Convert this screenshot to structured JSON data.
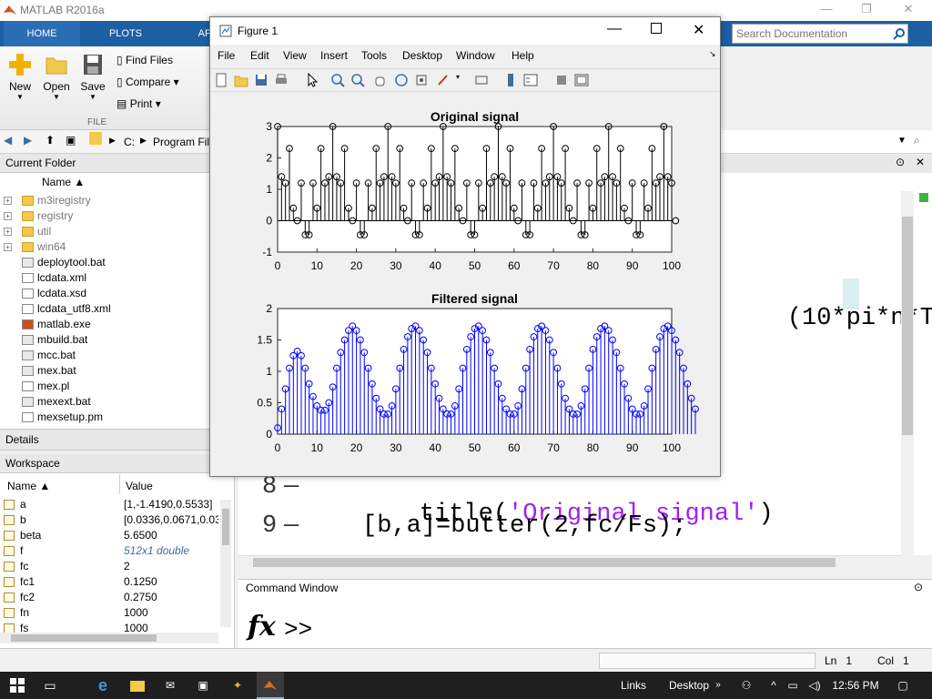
{
  "window": {
    "title": "MATLAB R2016a",
    "min": "—",
    "max": "❐",
    "close": "✕"
  },
  "ribbon": {
    "tabs": [
      "HOME",
      "PLOTS",
      "AP"
    ],
    "search_placeholder": "Search Documentation",
    "new_label": "New",
    "open_label": "Open",
    "save_label": "Save",
    "find_files_label": "Find Files",
    "compare_label": "Compare",
    "print_label": "Print",
    "group_label": "FILE"
  },
  "address": {
    "path": [
      "C:",
      "Program Fil"
    ]
  },
  "current_folder": {
    "title": "Current Folder",
    "col_name": "Name ▲",
    "items": [
      {
        "name": "m3iregistry",
        "type": "folder"
      },
      {
        "name": "registry",
        "type": "folder"
      },
      {
        "name": "util",
        "type": "folder"
      },
      {
        "name": "win64",
        "type": "folder"
      },
      {
        "name": "deploytool.bat",
        "type": "bat"
      },
      {
        "name": "lcdata.xml",
        "type": "file"
      },
      {
        "name": "lcdata.xsd",
        "type": "file"
      },
      {
        "name": "lcdata_utf8.xml",
        "type": "file"
      },
      {
        "name": "matlab.exe",
        "type": "exe"
      },
      {
        "name": "mbuild.bat",
        "type": "bat"
      },
      {
        "name": "mcc.bat",
        "type": "bat"
      },
      {
        "name": "mex.bat",
        "type": "bat"
      },
      {
        "name": "mex.pl",
        "type": "file"
      },
      {
        "name": "mexext.bat",
        "type": "bat"
      },
      {
        "name": "mexsetup.pm",
        "type": "file"
      }
    ]
  },
  "details": {
    "title": "Details"
  },
  "workspace": {
    "title": "Workspace",
    "col_name": "Name ▲",
    "col_value": "Value",
    "vars": [
      {
        "name": "a",
        "value": "[1,-1.4190,0.5533]"
      },
      {
        "name": "b",
        "value": "[0.0336,0.0671,0.033"
      },
      {
        "name": "beta",
        "value": "5.6500"
      },
      {
        "name": "f",
        "value": "512x1 double"
      },
      {
        "name": "fc",
        "value": "2"
      },
      {
        "name": "fc1",
        "value": "0.1250"
      },
      {
        "name": "fc2",
        "value": "0.2750"
      },
      {
        "name": "fn",
        "value": "1000"
      },
      {
        "name": "fs",
        "value": "1000"
      }
    ]
  },
  "editor": {
    "fragment": "(10*pi*n*T",
    "lines": [
      {
        "num": "8",
        "prefix": "title(",
        "string": "'Original signal'",
        "suffix": ")"
      },
      {
        "num": "9",
        "prefix": "[b,a]=butter(2,fc/Fs);",
        "string": "",
        "suffix": ""
      }
    ]
  },
  "command_window": {
    "title": "Command Window",
    "prompt": ">>",
    "fx": "fx"
  },
  "statusbar": {
    "ln_label": "Ln",
    "ln": "1",
    "col_label": "Col",
    "col": "1"
  },
  "figure": {
    "title": "Figure 1",
    "menu": [
      "File",
      "Edit",
      "View",
      "Insert",
      "Tools",
      "Desktop",
      "Window",
      "Help"
    ]
  },
  "taskbar": {
    "links": "Links",
    "desktop": "Desktop",
    "time": "12:56 PM"
  },
  "chart_data": [
    {
      "type": "stem",
      "title": "Original signal",
      "color": "#000000",
      "xlim": [
        0,
        100
      ],
      "ylim": [
        -1,
        3
      ],
      "xticks": [
        0,
        10,
        20,
        30,
        40,
        50,
        60,
        70,
        80,
        90,
        100
      ],
      "yticks": [
        -1,
        0,
        1,
        2,
        3
      ],
      "values": [
        3,
        1.4,
        1.2,
        2.3,
        0.4,
        0,
        1.2,
        -0.45,
        -0.45,
        1.2,
        0.4,
        2.3,
        1.2,
        1.4,
        3,
        1.4,
        1.2,
        2.3,
        0.4,
        0,
        1.2,
        -0.45,
        -0.45,
        1.2,
        0.4,
        2.3,
        1.2,
        1.4,
        3,
        1.4,
        1.2,
        2.3,
        0.4,
        0,
        1.2,
        -0.45,
        -0.45,
        1.2,
        0.4,
        2.3,
        1.2,
        1.4,
        3,
        1.4,
        1.2,
        2.3,
        0.4,
        0,
        1.2,
        -0.45,
        -0.45,
        1.2,
        0.4,
        2.3,
        1.2,
        1.4,
        3,
        1.4,
        1.2,
        2.3,
        0.4,
        0,
        1.2,
        -0.45,
        -0.45,
        1.2,
        0.4,
        2.3,
        1.2,
        1.4,
        3,
        1.4,
        1.2,
        2.3,
        0.4,
        0,
        1.2,
        -0.45,
        -0.45,
        1.2,
        0.4,
        2.3,
        1.2,
        1.4,
        3,
        1.4,
        1.2,
        2.3,
        0.4,
        0,
        1.2,
        -0.45,
        -0.45,
        1.2,
        0.4,
        2.3,
        1.2,
        1.4,
        3,
        1.4,
        1.2,
        0
      ]
    },
    {
      "type": "stem",
      "title": "Filtered signal",
      "color": "#0000ff",
      "xlim": [
        0,
        100
      ],
      "ylim": [
        0,
        2
      ],
      "xticks": [
        0,
        10,
        20,
        30,
        40,
        50,
        60,
        70,
        80,
        90,
        100
      ],
      "yticks": [
        0,
        0.5,
        1,
        1.5,
        2
      ],
      "yticklabels": [
        "0",
        "0.5",
        "1",
        "1.5",
        "2"
      ],
      "values": [
        0.1,
        0.4,
        0.72,
        1.05,
        1.25,
        1.32,
        1.25,
        1.05,
        0.8,
        0.6,
        0.45,
        0.38,
        0.38,
        0.5,
        0.75,
        1.05,
        1.3,
        1.5,
        1.65,
        1.72,
        1.65,
        1.5,
        1.3,
        1.05,
        0.8,
        0.57,
        0.4,
        0.32,
        0.32,
        0.45,
        0.72,
        1.05,
        1.35,
        1.55,
        1.68,
        1.72,
        1.65,
        1.5,
        1.3,
        1.05,
        0.8,
        0.57,
        0.4,
        0.32,
        0.32,
        0.45,
        0.72,
        1.05,
        1.35,
        1.55,
        1.68,
        1.72,
        1.65,
        1.5,
        1.3,
        1.05,
        0.8,
        0.57,
        0.4,
        0.32,
        0.32,
        0.45,
        0.72,
        1.05,
        1.35,
        1.55,
        1.68,
        1.72,
        1.65,
        1.5,
        1.3,
        1.05,
        0.8,
        0.57,
        0.4,
        0.32,
        0.32,
        0.45,
        0.72,
        1.05,
        1.35,
        1.55,
        1.68,
        1.72,
        1.65,
        1.5,
        1.3,
        1.05,
        0.8,
        0.57,
        0.4,
        0.32,
        0.32,
        0.45,
        0.72,
        1.05,
        1.35,
        1.55,
        1.68,
        1.72,
        1.65,
        1.5,
        1.3,
        1.05,
        0.8,
        0.57,
        0.4
      ]
    }
  ]
}
